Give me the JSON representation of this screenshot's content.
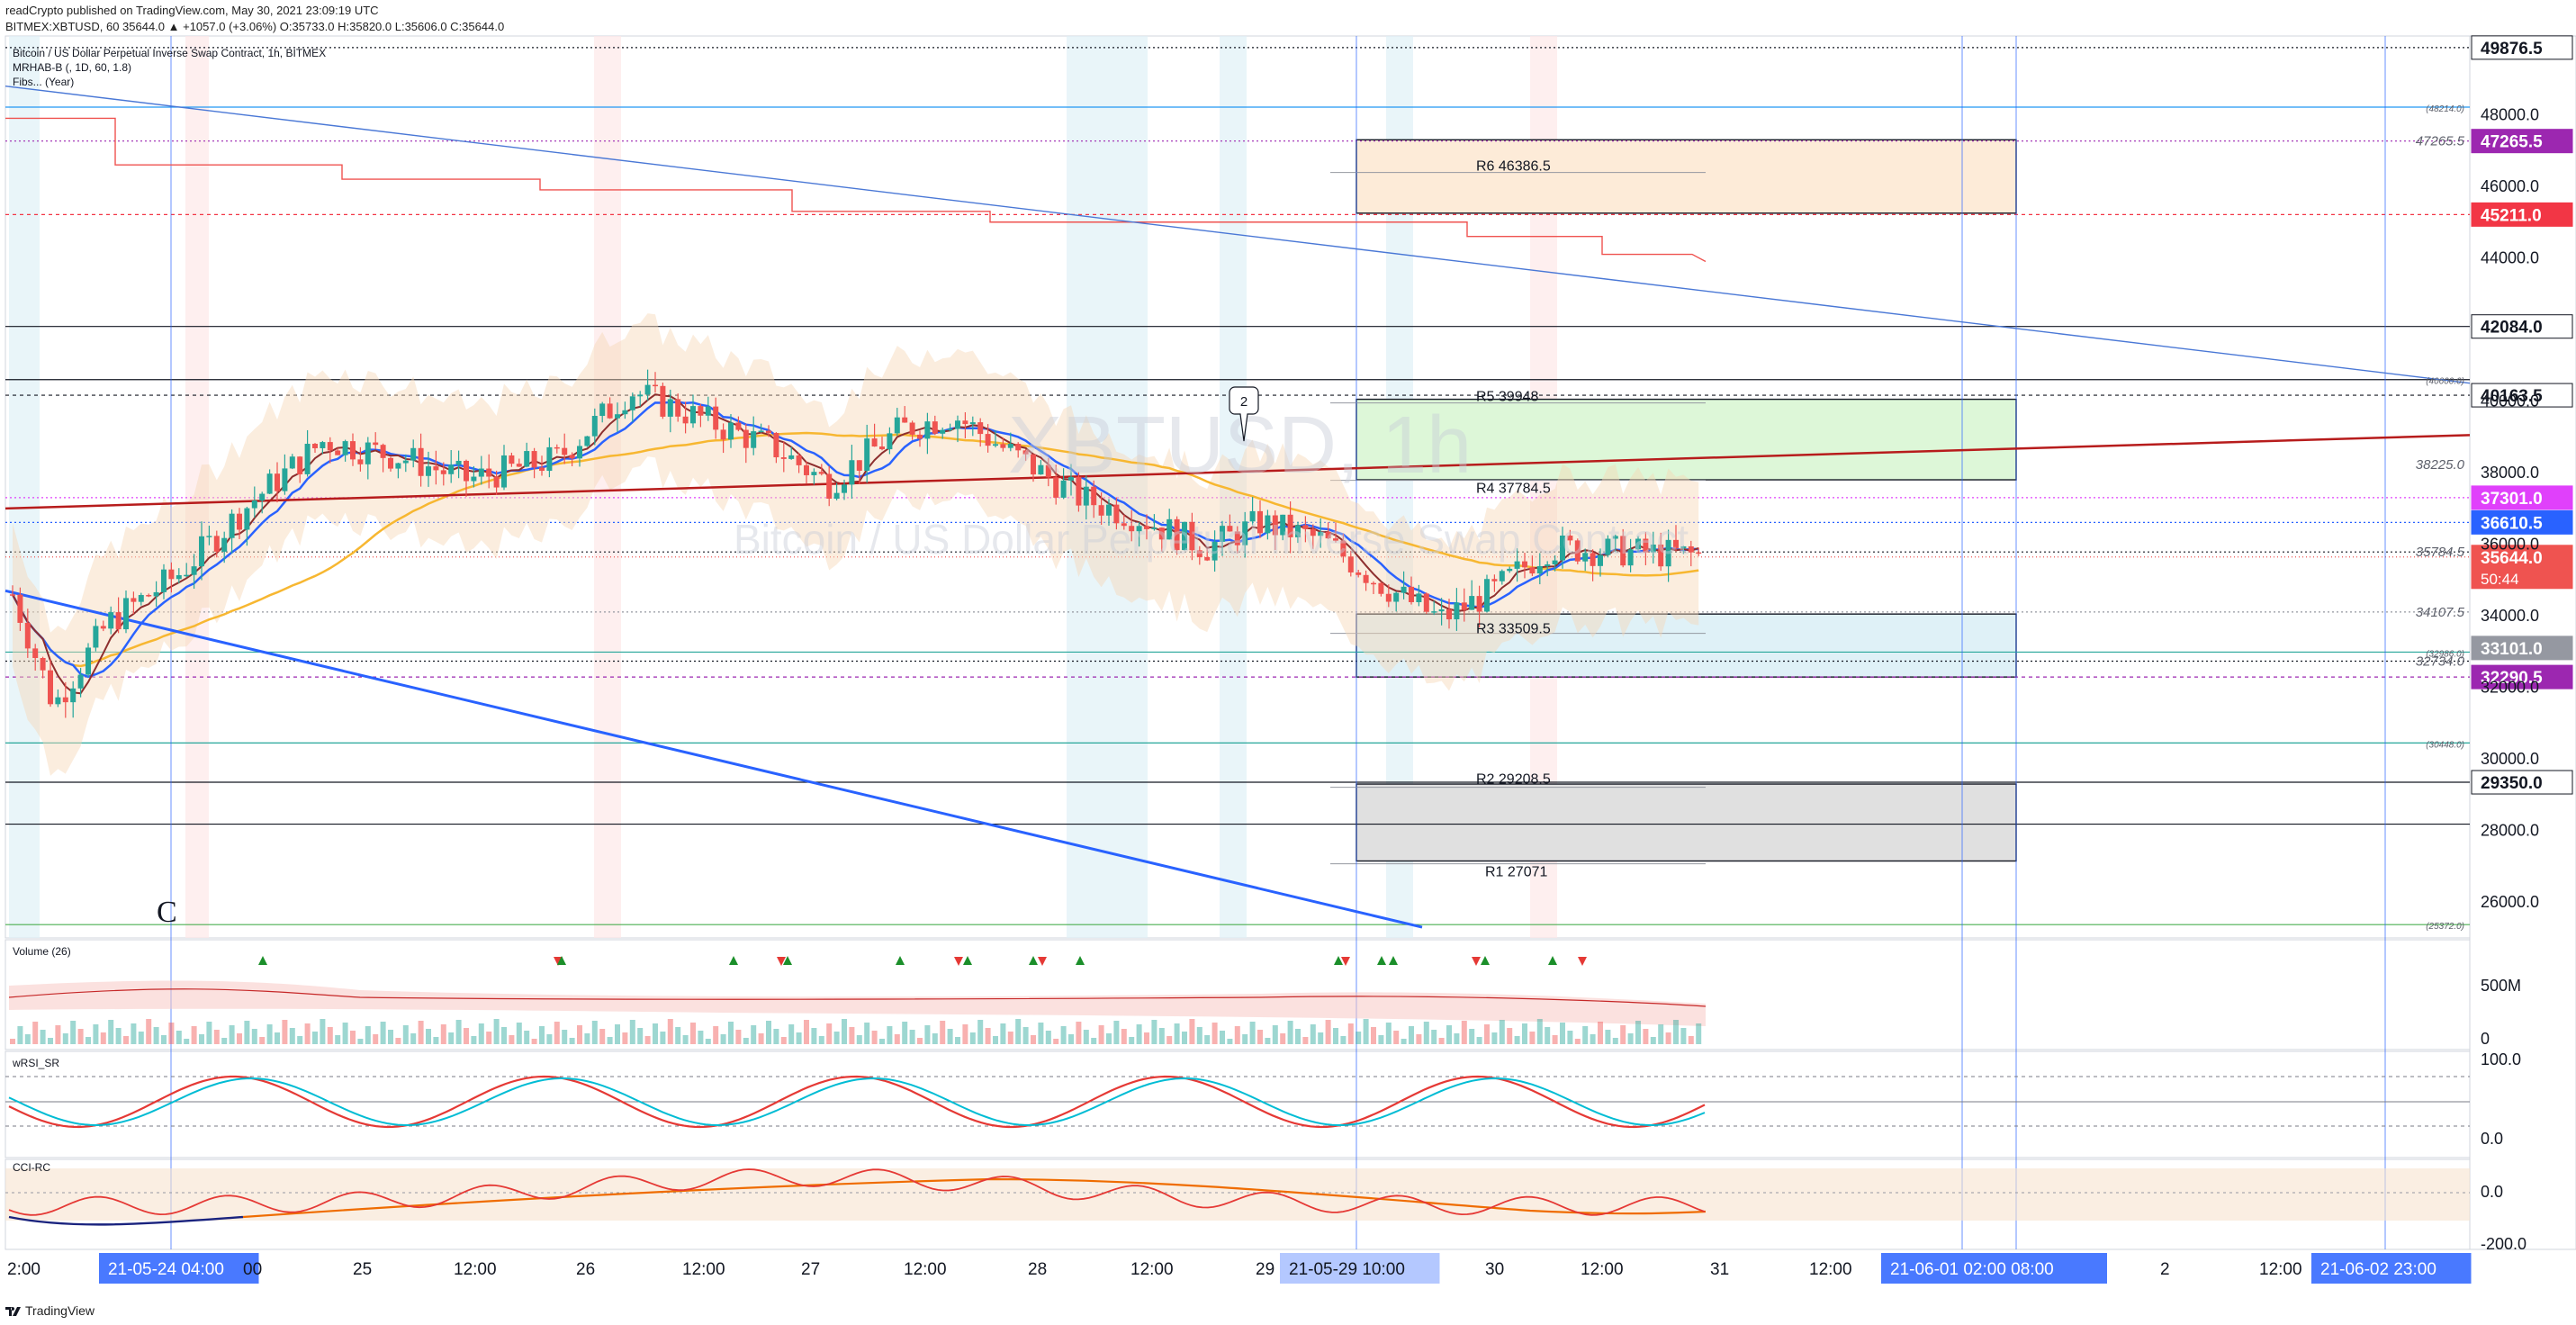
{
  "header": {
    "publish_line": "readCrypto published on TradingView.com, May 30, 2021 23:09:19 UTC",
    "ohlc_line": "BITMEX:XBTUSD, 60  35644.0 ▲ +1057.0 (+3.06%) O:35733.0 H:35820.0 L:35606.0 C:35644.0"
  },
  "legend": {
    "symbol_title": "Bitcoin / US Dollar Perpetual Inverse Swap Contract, 1h, BITMEX",
    "ind1": "MRHAB-B (, 1D, 60, 1.8)",
    "ind2": "Fibs... (Year)"
  },
  "watermark": {
    "ticker": "XBTUSD, 1h",
    "name": "Bitcoin / US Dollar Perpetual Inverse Swap Contract"
  },
  "pane_labels": {
    "volume": "Volume (26)",
    "rsi": "wRSI_SR",
    "cci": "CCI-RC"
  },
  "footer": {
    "brand": "TradingView"
  },
  "colors": {
    "up": "#26a69a",
    "down": "#ef5350",
    "grid_blue": "#2962ff",
    "price_tag": "#ef5350",
    "time_highlight": "#2962ff"
  },
  "chart_data": {
    "type": "candlestick",
    "symbol": "BITMEX:XBTUSD",
    "interval": "1h",
    "ylim": [
      25000,
      50200
    ],
    "last_price": 35644.0,
    "countdown": "50:44",
    "price_axis_ticks": [
      "48000.0",
      "46000.0",
      "44000.0",
      "40000.0",
      "38000.0",
      "36000.0",
      "34000.0",
      "32000.0",
      "30000.0",
      "28000.0",
      "26000.0"
    ],
    "price_tags": [
      {
        "label": "49876.5",
        "value": 49876.5,
        "bg": "#ffffff",
        "fg": "#131722"
      },
      {
        "label": "47265.5",
        "value": 47265.5,
        "bg": "#9c27b0",
        "fg": "#ffffff"
      },
      {
        "label": "45211.0",
        "value": 45211.0,
        "bg": "#f23645",
        "fg": "#ffffff"
      },
      {
        "label": "42084.0",
        "value": 42084.0,
        "bg": "#ffffff",
        "fg": "#131722"
      },
      {
        "label": "40163.5",
        "value": 40163.5,
        "bg": "#ffffff",
        "fg": "#131722"
      },
      {
        "label": "37301.0",
        "value": 37301.0,
        "bg": "#e040fb",
        "fg": "#ffffff"
      },
      {
        "label": "36610.5",
        "value": 36610.5,
        "bg": "#2962ff",
        "fg": "#ffffff"
      },
      {
        "label": "35644.0",
        "value": 35644.0,
        "bg": "#ef5350",
        "fg": "#ffffff"
      },
      {
        "label": "33101.0",
        "value": 33101.0,
        "bg": "#9598a1",
        "fg": "#ffffff"
      },
      {
        "label": "32290.5",
        "value": 32290.5,
        "bg": "#9c27b0",
        "fg": "#ffffff"
      },
      {
        "label": "29350.0",
        "value": 29350.0,
        "bg": "#ffffff",
        "fg": "#131722"
      }
    ],
    "level_labels": [
      {
        "label": "(48214.0)",
        "value": 48214.0
      },
      {
        "label": "47265.5",
        "value": 47265.5
      },
      {
        "label": "(40600.0)",
        "value": 40600.0
      },
      {
        "label": "38225.0",
        "value": 38225.0
      },
      {
        "label": "35784.5",
        "value": 35784.5
      },
      {
        "label": "34107.5",
        "value": 34107.5
      },
      {
        "label": "(32986.0)",
        "value": 32986.0
      },
      {
        "label": "32734.0",
        "value": 32734.0
      },
      {
        "label": "(30448.0)",
        "value": 30448.0
      },
      {
        "label": "(25372.0)",
        "value": 25372.0
      }
    ],
    "pivots": [
      {
        "label": "R6  46386.5",
        "value": 46386.5
      },
      {
        "label": "R5  39948",
        "value": 39948
      },
      {
        "label": "R4  37784.5",
        "value": 37784.5
      },
      {
        "label": "R3  33509.5",
        "value": 33509.5
      },
      {
        "label": "R2  29208.5",
        "value": 29208.5
      },
      {
        "label": "R1  27071",
        "value": 27071
      }
    ],
    "boxes": [
      {
        "name": "r6-box",
        "top": 47300,
        "bottom": 45250,
        "fill": "#fdebd8"
      },
      {
        "name": "r4-box",
        "top": 40050,
        "bottom": 37800,
        "fill": "#ddf7d8"
      },
      {
        "name": "r3-box",
        "top": 34050,
        "bottom": 32290,
        "fill": "#dff1f7"
      },
      {
        "name": "r1-box",
        "top": 29300,
        "bottom": 27150,
        "fill": "#e0e0e0"
      }
    ],
    "time_axis": [
      {
        "label": "2:00"
      },
      {
        "label": "21-05-24  04:00",
        "hl": true
      },
      {
        "label": "00"
      },
      {
        "label": "25"
      },
      {
        "label": "12:00"
      },
      {
        "label": "26"
      },
      {
        "label": "12:00"
      },
      {
        "label": "27"
      },
      {
        "label": "12:00"
      },
      {
        "label": "28"
      },
      {
        "label": "12:00"
      },
      {
        "label": "29"
      },
      {
        "label": "21-05-29  10:00",
        "hl": true
      },
      {
        "label": "30"
      },
      {
        "label": "12:00"
      },
      {
        "label": "31"
      },
      {
        "label": "12:00"
      },
      {
        "label": "21-06-01  02:00  08:00",
        "hl": true
      },
      {
        "label": "2"
      },
      {
        "label": "12:00"
      },
      {
        "label": "21-06-02  23:00",
        "hl": true
      }
    ],
    "annotation": {
      "label": "2"
    },
    "wave_label": "C",
    "volume": {
      "axis_labels": [
        "500M",
        "0"
      ]
    },
    "rsi": {
      "axis_labels": [
        "100.0",
        "0.0"
      ]
    },
    "cci": {
      "axis_labels": [
        "0.0",
        "-200.0"
      ]
    }
  }
}
